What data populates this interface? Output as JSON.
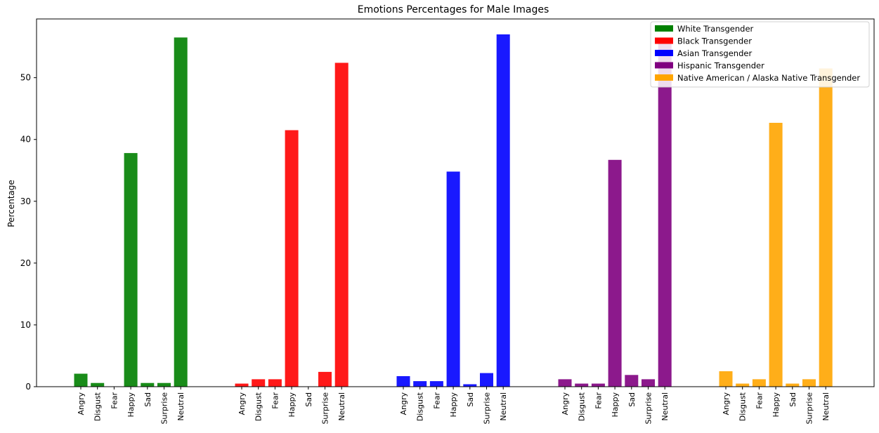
{
  "chart_data": {
    "type": "bar",
    "title": "Emotions Percentages for Male Images",
    "xlabel": "",
    "ylabel": "Percentage",
    "ylim": [
      0,
      59.5
    ],
    "yticks": [
      0,
      10,
      20,
      30,
      40,
      50
    ],
    "categories": [
      "Angry",
      "Disgust",
      "Fear",
      "Happy",
      "Sad",
      "Surprise",
      "Neutral"
    ],
    "legend_position": "top-right",
    "grid": false,
    "series": [
      {
        "name": "White Transgender",
        "color": "#008000",
        "values": [
          2.1,
          0.6,
          0.0,
          37.8,
          0.6,
          0.6,
          56.5
        ]
      },
      {
        "name": "Black Transgender",
        "color": "#ff0000",
        "values": [
          0.5,
          1.2,
          1.2,
          41.5,
          0.0,
          2.4,
          52.4
        ]
      },
      {
        "name": "Asian Transgender",
        "color": "#0000ff",
        "values": [
          1.7,
          0.9,
          0.9,
          34.8,
          0.4,
          2.2,
          57.0
        ]
      },
      {
        "name": "Hispanic Transgender",
        "color": "#800080",
        "values": [
          1.2,
          0.5,
          0.5,
          36.7,
          1.9,
          1.2,
          56.0
        ]
      },
      {
        "name": "Native American / Alaska Native Transgender",
        "color": "#ffa500",
        "values": [
          2.5,
          0.5,
          1.2,
          42.7,
          0.5,
          1.2,
          51.5
        ]
      }
    ]
  }
}
